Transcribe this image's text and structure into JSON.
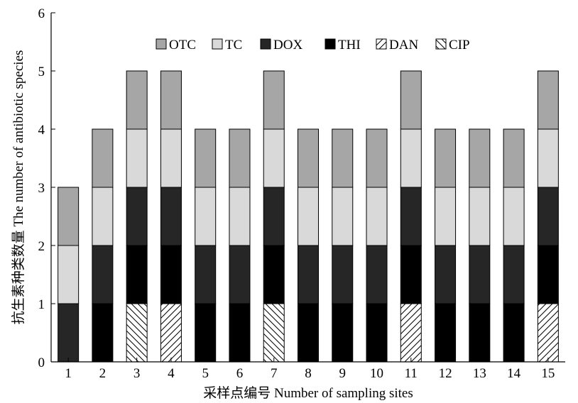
{
  "chart_data": {
    "type": "bar",
    "stacked": true,
    "xlabel": "采样点编号 Number of sampling sites",
    "ylabel": "抗生素种类数量 The number of antibiotic species",
    "ylim": [
      0,
      6
    ],
    "yticks": [
      "0",
      "1",
      "2",
      "3",
      "4",
      "5",
      "6"
    ],
    "categories": [
      "1",
      "2",
      "3",
      "4",
      "5",
      "6",
      "7",
      "8",
      "9",
      "10",
      "11",
      "12",
      "13",
      "14",
      "15"
    ],
    "legend_position": "top",
    "grid": false,
    "series": [
      {
        "name": "CIP",
        "fill": "hatch-back",
        "color": "#ffffff",
        "values": [
          0,
          0,
          1,
          0,
          0,
          0,
          1,
          0,
          0,
          0,
          0,
          0,
          0,
          0,
          0
        ]
      },
      {
        "name": "DAN",
        "fill": "hatch-forward",
        "color": "#ffffff",
        "values": [
          0,
          0,
          0,
          1,
          0,
          0,
          0,
          0,
          0,
          0,
          1,
          0,
          0,
          0,
          1
        ]
      },
      {
        "name": "THI",
        "fill": "solid",
        "color": "#000000",
        "values": [
          0,
          1,
          1,
          1,
          1,
          1,
          1,
          1,
          1,
          1,
          1,
          1,
          1,
          1,
          1
        ]
      },
      {
        "name": "DOX",
        "fill": "solid",
        "color": "#262626",
        "values": [
          1,
          1,
          1,
          1,
          1,
          1,
          1,
          1,
          1,
          1,
          1,
          1,
          1,
          1,
          1
        ]
      },
      {
        "name": "TC",
        "fill": "solid",
        "color": "#d9d9d9",
        "values": [
          1,
          1,
          1,
          1,
          1,
          1,
          1,
          1,
          1,
          1,
          1,
          1,
          1,
          1,
          1
        ]
      },
      {
        "name": "OTC",
        "fill": "solid",
        "color": "#a6a6a6",
        "values": [
          1,
          1,
          1,
          1,
          1,
          1,
          1,
          1,
          1,
          1,
          1,
          1,
          1,
          1,
          1
        ]
      }
    ],
    "legend_order": [
      "OTC",
      "TC",
      "DOX",
      "THI",
      "DAN",
      "CIP"
    ]
  }
}
